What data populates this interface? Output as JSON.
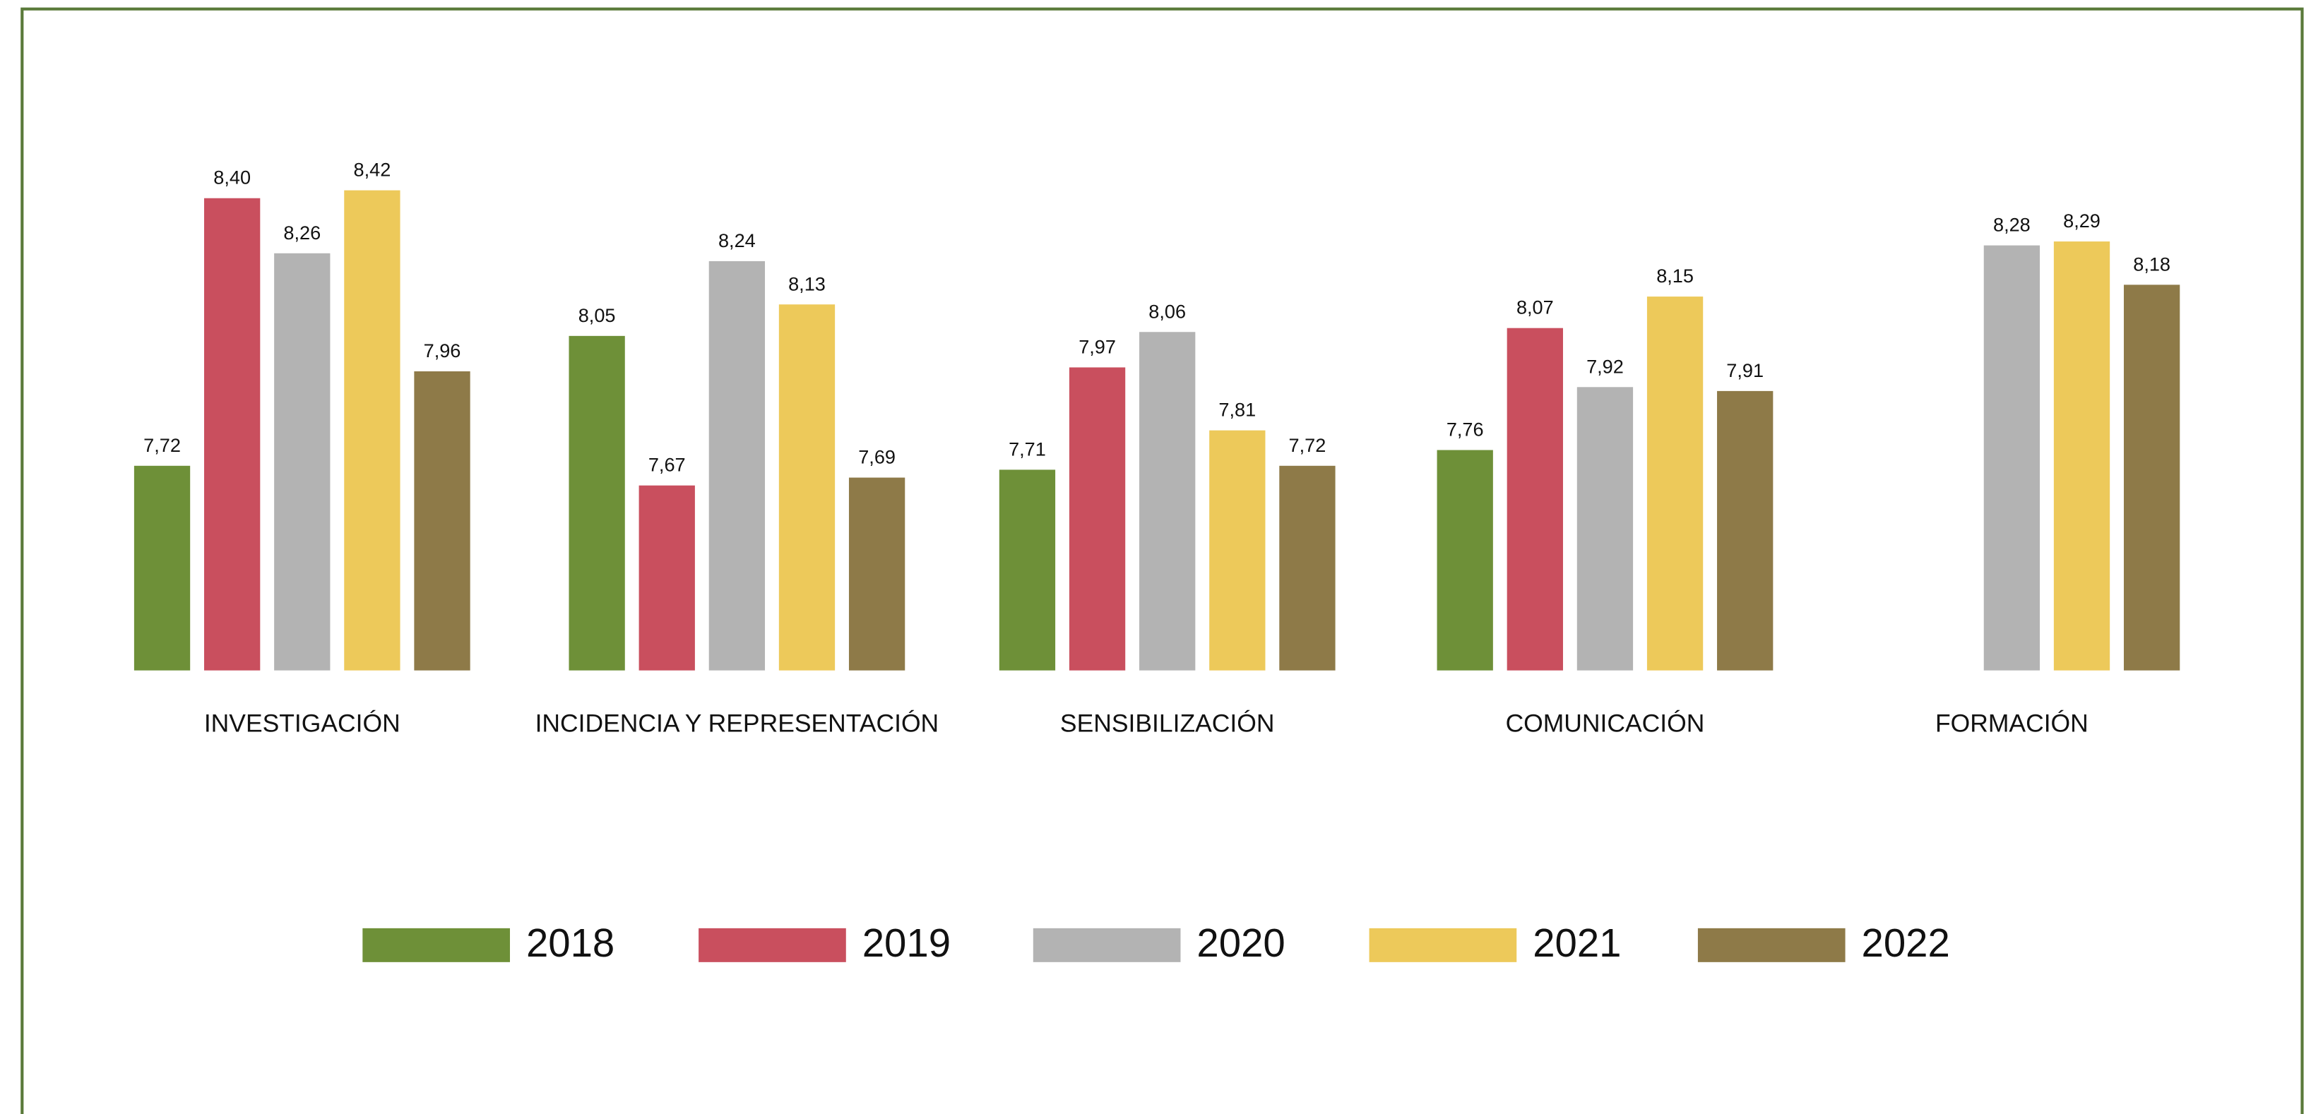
{
  "chart_data": {
    "type": "bar",
    "categories": [
      "INVESTIGACIÓN",
      "INCIDENCIA Y REPRESENTACIÓN",
      "SENSIBILIZACIÓN",
      "COMUNICACIÓN",
      "FORMACIÓN"
    ],
    "series": [
      {
        "name": "2018",
        "color": "#6e9038",
        "values": [
          7.72,
          8.05,
          7.71,
          7.76,
          null
        ],
        "value_labels": [
          "7,72",
          "8,05",
          "7,71",
          "7,76",
          null
        ]
      },
      {
        "name": "2019",
        "color": "#c94f5e",
        "values": [
          8.4,
          7.67,
          7.97,
          8.07,
          null
        ],
        "value_labels": [
          "8,40",
          "7,67",
          "7,97",
          "8,07",
          null
        ]
      },
      {
        "name": "2020",
        "color": "#b3b3b3",
        "values": [
          8.26,
          8.24,
          8.06,
          7.92,
          8.28
        ],
        "value_labels": [
          "8,26",
          "8,24",
          "8,06",
          "7,92",
          "8,28"
        ]
      },
      {
        "name": "2021",
        "color": "#edc95a",
        "values": [
          8.42,
          8.13,
          7.81,
          8.15,
          8.29
        ],
        "value_labels": [
          "8,42",
          "8,13",
          "7,81",
          "8,15",
          "8,29"
        ]
      },
      {
        "name": "2022",
        "color": "#8e7a48",
        "values": [
          7.96,
          7.69,
          7.72,
          7.91,
          8.18
        ],
        "value_labels": [
          "7,96",
          "7,69",
          "7,72",
          "7,91",
          "8,18"
        ]
      }
    ],
    "ylim": [
      7.2,
      8.6
    ],
    "legend": "bottom"
  }
}
